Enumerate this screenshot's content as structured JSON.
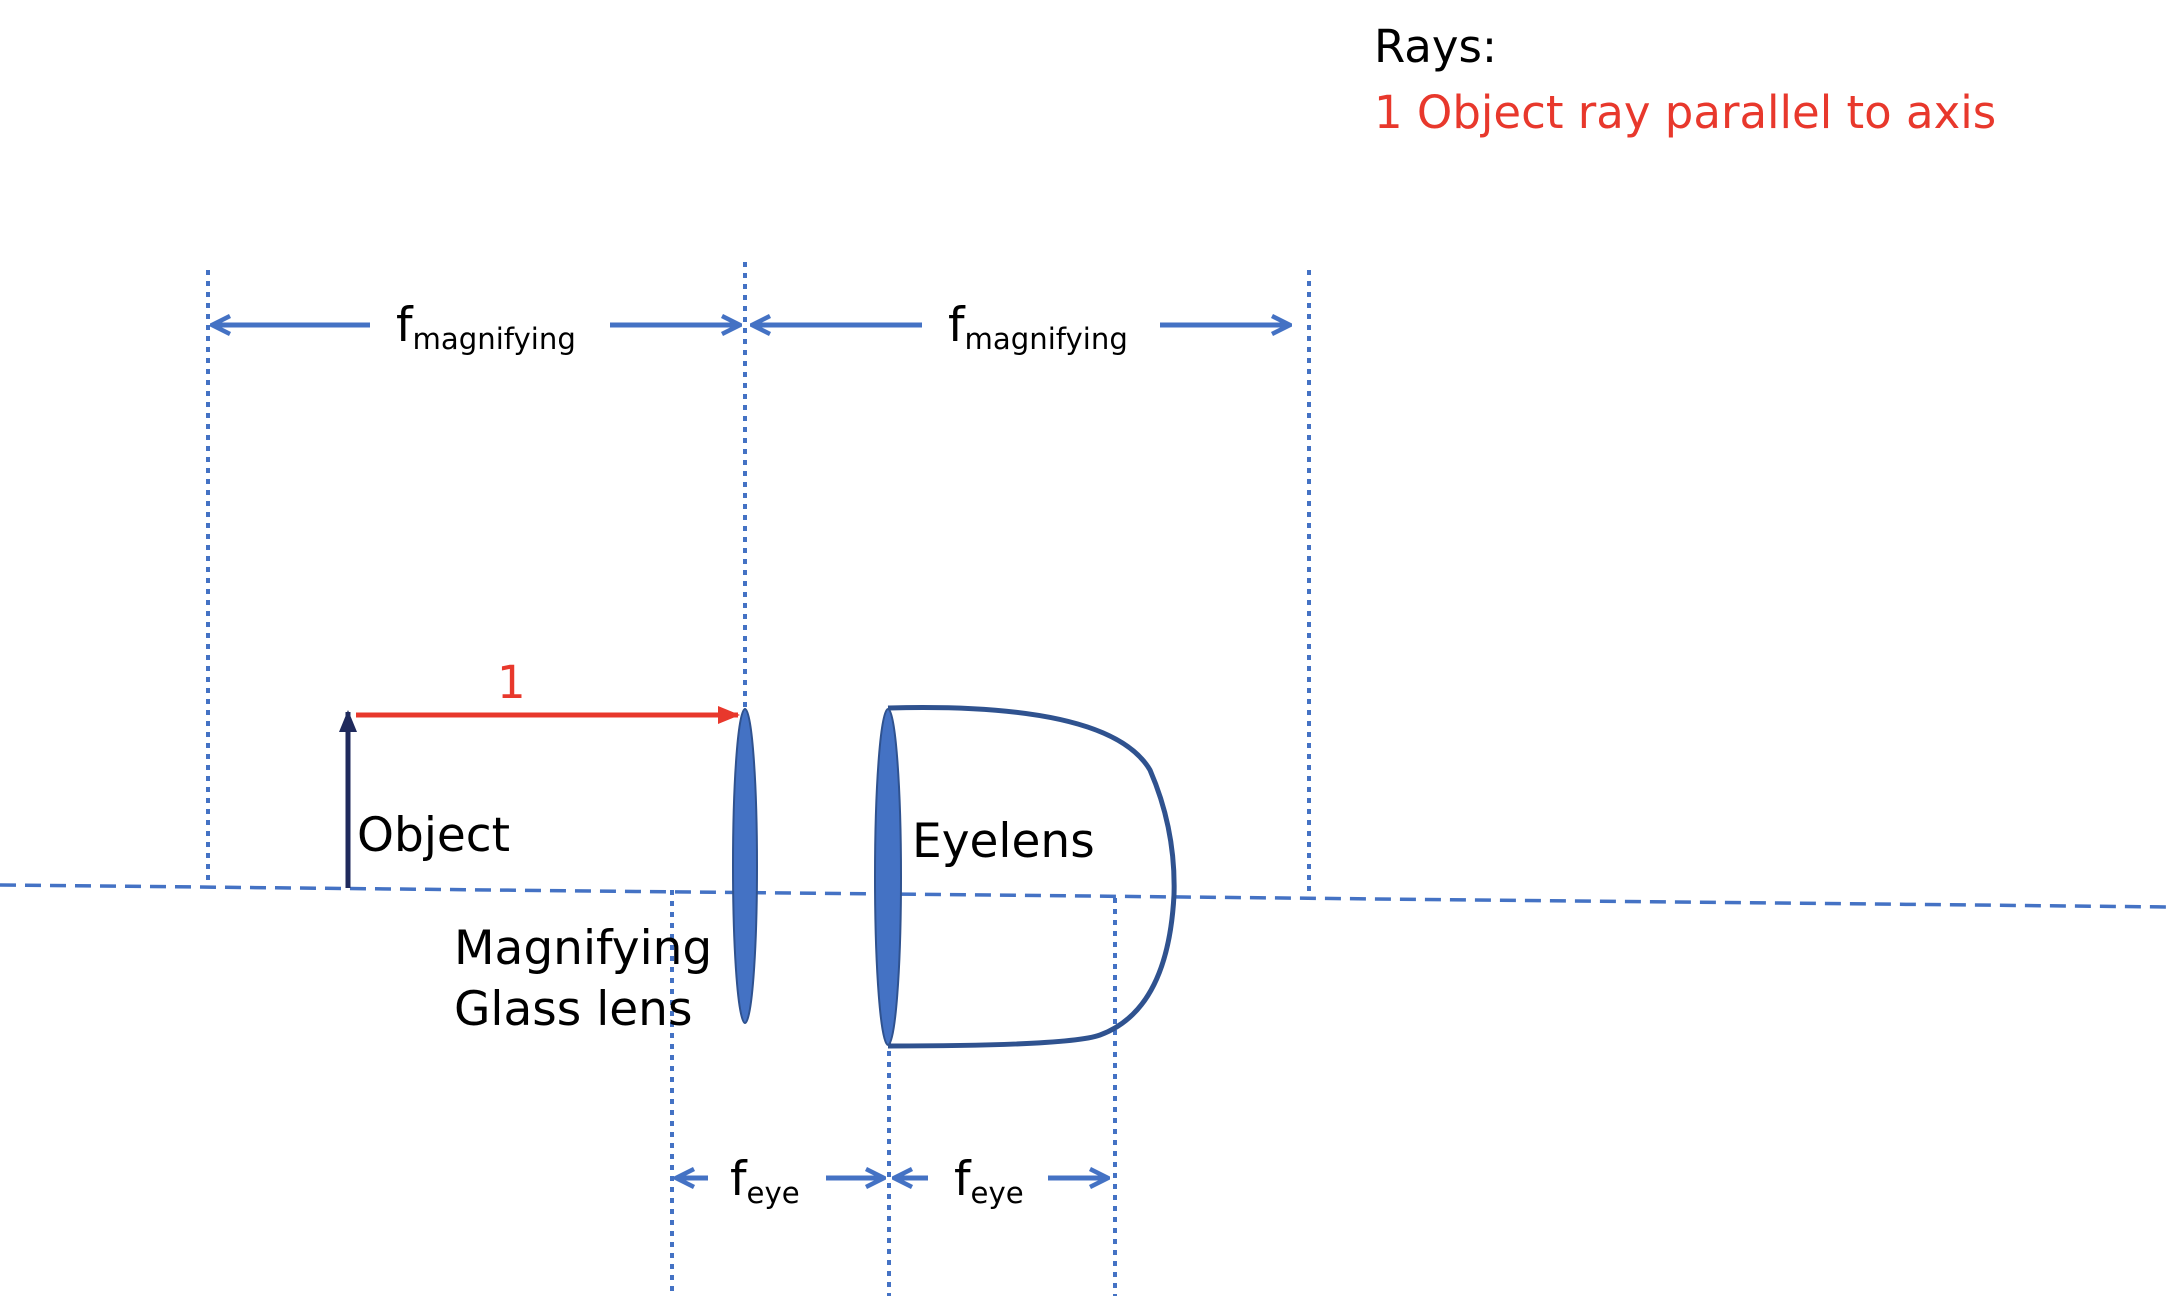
{
  "colors": {
    "guide_blue": "#4472c4",
    "lens_fill": "#4472c4",
    "lens_stroke": "#2f528f",
    "eye_outline": "#2f528f",
    "object_arrow": "#1f2a5c",
    "ray_red": "#e8382c",
    "text": "#000000"
  },
  "legend": {
    "title": "Rays:",
    "items": [
      {
        "text": "1 Object ray parallel to axis",
        "color": "#e8382c"
      }
    ]
  },
  "rays": [
    {
      "number": "1"
    }
  ],
  "labels": {
    "object": "Object",
    "magnifying_lens": [
      "Magnifying",
      "Glass lens"
    ],
    "eyelens": "Eyelens"
  },
  "dimensions": {
    "f_magnifying": {
      "base": "f",
      "sub": "magnifying"
    },
    "f_eye": {
      "base": "f",
      "sub": "eye"
    }
  }
}
